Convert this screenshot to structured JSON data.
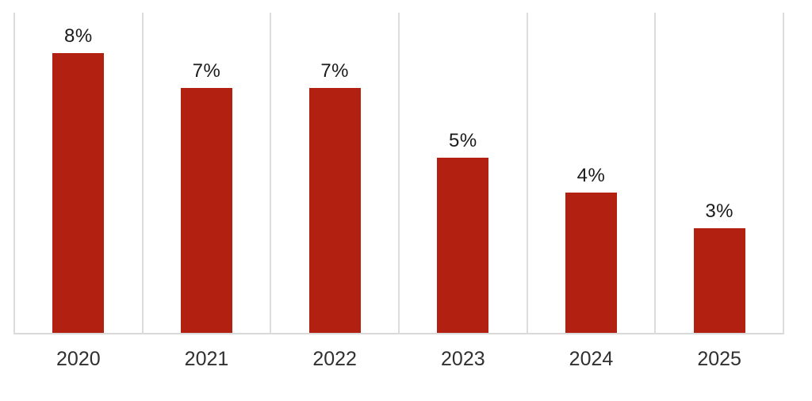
{
  "chart_data": {
    "type": "bar",
    "title": "",
    "xlabel": "",
    "ylabel": "",
    "categories": [
      "2020",
      "2021",
      "2022",
      "2023",
      "2024",
      "2025"
    ],
    "values": [
      8,
      7,
      7,
      5,
      4,
      3
    ],
    "value_labels": [
      "8%",
      "7%",
      "7%",
      "5%",
      "4%",
      "3%"
    ],
    "ylim": [
      0,
      9.15
    ],
    "legend": "none",
    "grid": "vertical category boundaries only",
    "bar_color": "#B22012",
    "value_label_color": "#1A1A1A",
    "axis_label_color": "#303030",
    "gridline_color": "#DCDCDC",
    "axis_line_color": "#D9D9D9",
    "background_color": "#FFFFFF"
  }
}
